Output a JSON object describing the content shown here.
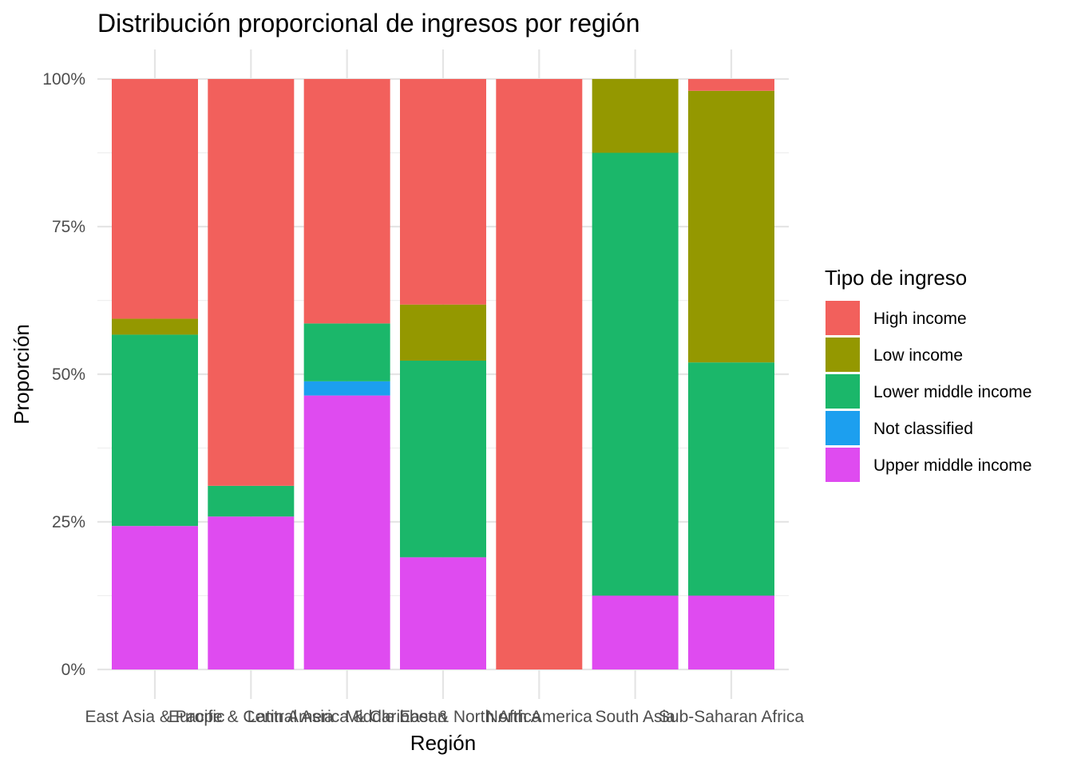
{
  "chart_data": {
    "type": "bar",
    "stacked": true,
    "normalized": true,
    "title": "Distribución proporcional de ingresos por región",
    "xlabel": "Región",
    "ylabel": "Proporción",
    "ylim": [
      0,
      1
    ],
    "yticks": [
      0,
      0.25,
      0.5,
      0.75,
      1
    ],
    "ytick_labels": [
      "0%",
      "25%",
      "50%",
      "75%",
      "100%"
    ],
    "grid": true,
    "categories": [
      "East Asia & Pacific",
      "Europe & Central Asia",
      "Latin America & Caribbean",
      "Middle East & North Africa",
      "North America",
      "South Asia",
      "Sub-Saharan Africa"
    ],
    "legend": {
      "title": "Tipo de ingreso",
      "position": "right"
    },
    "series": [
      {
        "name": "Upper middle income",
        "color": "#DF4BF0",
        "values": [
          0.243,
          0.259,
          0.464,
          0.19,
          0,
          0.125,
          0.125
        ]
      },
      {
        "name": "Not classified",
        "color": "#1C9FEF",
        "values": [
          0,
          0,
          0.024,
          0,
          0,
          0,
          0
        ]
      },
      {
        "name": "Lower middle income",
        "color": "#1BB76A",
        "values": [
          0.324,
          0.052,
          0.098,
          0.333,
          0,
          0.75,
          0.395
        ]
      },
      {
        "name": "Low income",
        "color": "#949800",
        "values": [
          0.027,
          0,
          0,
          0.095,
          0,
          0.125,
          0.46
        ]
      },
      {
        "name": "High income",
        "color": "#F2605C",
        "values": [
          0.406,
          0.689,
          0.414,
          0.382,
          1.0,
          0,
          0.02
        ]
      }
    ],
    "legend_order": [
      "High income",
      "Low income",
      "Lower middle income",
      "Not classified",
      "Upper middle income"
    ]
  }
}
